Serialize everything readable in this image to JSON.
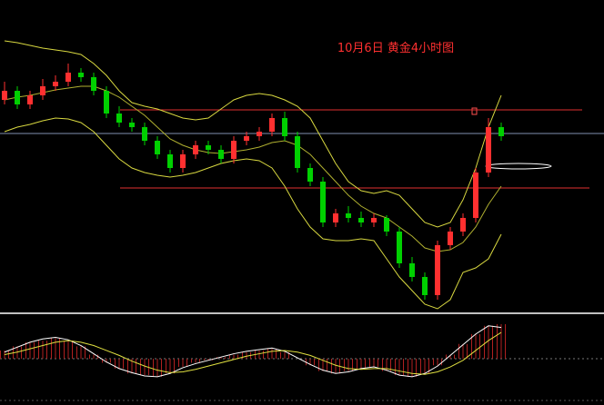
{
  "chart_data": {
    "type": "candlestick",
    "title": "10月6日 黄金4小时图",
    "up_color": "#ff3030",
    "down_color": "#00d000",
    "band_color": "#d8d840",
    "middle_color": "#b0b030",
    "open": [
      235,
      245,
      230,
      240,
      250,
      255,
      265,
      260,
      245,
      220,
      210,
      205,
      190,
      175,
      160,
      175,
      185,
      180,
      170,
      190,
      195,
      200,
      215,
      195,
      160,
      145,
      100,
      110,
      105,
      100,
      105,
      90,
      55,
      40,
      20,
      75,
      90,
      105,
      155,
      205
    ],
    "high": [
      255,
      250,
      245,
      258,
      262,
      275,
      270,
      265,
      250,
      228,
      215,
      210,
      195,
      180,
      180,
      190,
      190,
      185,
      195,
      200,
      205,
      220,
      222,
      200,
      165,
      150,
      115,
      118,
      112,
      110,
      108,
      95,
      62,
      45,
      80,
      95,
      110,
      160,
      215,
      210
    ],
    "low": [
      230,
      225,
      225,
      235,
      245,
      250,
      255,
      240,
      215,
      205,
      200,
      185,
      170,
      155,
      155,
      170,
      175,
      165,
      165,
      185,
      190,
      195,
      190,
      155,
      140,
      95,
      95,
      100,
      95,
      95,
      85,
      50,
      35,
      15,
      15,
      70,
      85,
      100,
      150,
      190
    ],
    "close": [
      245,
      230,
      240,
      250,
      255,
      265,
      260,
      245,
      220,
      210,
      205,
      190,
      175,
      160,
      175,
      185,
      180,
      170,
      190,
      195,
      200,
      215,
      195,
      160,
      145,
      100,
      110,
      105,
      100,
      105,
      90,
      55,
      40,
      20,
      75,
      90,
      105,
      155,
      205,
      195
    ],
    "upper": [
      300,
      298,
      295,
      292,
      290,
      288,
      285,
      275,
      262,
      245,
      232,
      228,
      225,
      220,
      215,
      213,
      215,
      225,
      235,
      240,
      242,
      240,
      235,
      228,
      215,
      190,
      165,
      145,
      135,
      132,
      135,
      130,
      115,
      100,
      95,
      100,
      125,
      160,
      205,
      240
    ],
    "middle": [
      235,
      238,
      240,
      243,
      246,
      248,
      250,
      250,
      245,
      238,
      228,
      218,
      205,
      192,
      185,
      180,
      177,
      176,
      178,
      180,
      183,
      188,
      190,
      185,
      175,
      160,
      145,
      130,
      118,
      110,
      105,
      95,
      85,
      72,
      68,
      70,
      78,
      95,
      120,
      140
    ],
    "lower": [
      200,
      205,
      208,
      212,
      215,
      214,
      210,
      200,
      185,
      170,
      160,
      155,
      152,
      150,
      152,
      155,
      160,
      165,
      168,
      170,
      168,
      160,
      140,
      115,
      95,
      82,
      80,
      80,
      82,
      80,
      60,
      40,
      25,
      10,
      5,
      15,
      45,
      50,
      60,
      87
    ],
    "levels": [
      {
        "value": 224,
        "color": "#e03030"
      },
      {
        "value": 138,
        "color": "#e03030"
      },
      {
        "value": 198,
        "color": "#8090b0"
      }
    ],
    "hist_color": "#b02020",
    "hist": [
      10,
      15,
      20,
      22,
      25,
      22,
      15,
      5,
      -5,
      -12,
      -18,
      -20,
      -22,
      -18,
      -10,
      -5,
      -2,
      2,
      5,
      8,
      10,
      12,
      8,
      0,
      -8,
      -15,
      -18,
      -15,
      -12,
      -10,
      -15,
      -20,
      -22,
      -18,
      -8,
      5,
      18,
      30,
      40,
      42
    ],
    "dif": [
      8,
      14,
      20,
      24,
      26,
      23,
      16,
      6,
      -4,
      -12,
      -17,
      -21,
      -22,
      -18,
      -11,
      -6,
      -2,
      2,
      6,
      9,
      11,
      13,
      9,
      1,
      -7,
      -14,
      -18,
      -16,
      -12,
      -10,
      -14,
      -20,
      -22,
      -18,
      -9,
      4,
      17,
      30,
      40,
      38
    ],
    "dea": [
      5,
      8,
      12,
      16,
      20,
      22,
      20,
      16,
      10,
      4,
      -3,
      -9,
      -14,
      -17,
      -16,
      -13,
      -9,
      -5,
      -1,
      3,
      6,
      9,
      10,
      8,
      4,
      -2,
      -8,
      -12,
      -13,
      -12,
      -12,
      -15,
      -18,
      -19,
      -16,
      -10,
      -2,
      10,
      22,
      32
    ],
    "line_colors": [
      "#ffffff",
      "#e0e040"
    ]
  }
}
